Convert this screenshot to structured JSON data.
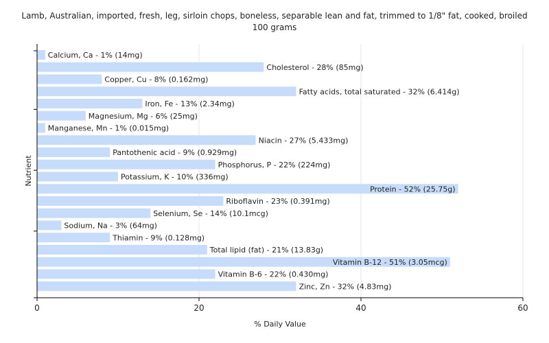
{
  "chart_data": {
    "type": "bar",
    "orientation": "horizontal",
    "title": "Lamb, Australian, imported, fresh, leg, sirloin chops, boneless, separable lean and fat, trimmed to 1/8\" fat, cooked, broiled",
    "subtitle": "100 grams",
    "xlabel": "% Daily Value",
    "ylabel": "Nutrient",
    "xlim": [
      0,
      60
    ],
    "xticks": [
      0,
      20,
      40,
      60
    ],
    "grid": true,
    "bar_color": "#c6dcfa",
    "categories": [
      "Calcium, Ca",
      "Cholesterol",
      "Copper, Cu",
      "Fatty acids, total saturated",
      "Iron, Fe",
      "Magnesium, Mg",
      "Manganese, Mn",
      "Niacin",
      "Pantothenic acid",
      "Phosphorus, P",
      "Potassium, K",
      "Protein",
      "Riboflavin",
      "Selenium, Se",
      "Sodium, Na",
      "Thiamin",
      "Total lipid (fat)",
      "Vitamin B-12",
      "Vitamin B-6",
      "Zinc, Zn"
    ],
    "values": [
      1,
      28,
      8,
      32,
      13,
      6,
      1,
      27,
      9,
      22,
      10,
      52,
      23,
      14,
      3,
      9,
      21,
      51,
      22,
      32
    ],
    "labels": [
      "Calcium, Ca - 1% (14mg)",
      "Cholesterol - 28% (85mg)",
      "Copper, Cu - 8% (0.162mg)",
      "Fatty acids, total saturated - 32% (6.414g)",
      "Iron, Fe - 13% (2.34mg)",
      "Magnesium, Mg - 6% (25mg)",
      "Manganese, Mn - 1% (0.015mg)",
      "Niacin - 27% (5.433mg)",
      "Pantothenic acid - 9% (0.929mg)",
      "Phosphorus, P - 22% (224mg)",
      "Potassium, K - 10% (336mg)",
      "Protein - 52% (25.75g)",
      "Riboflavin - 23% (0.391mg)",
      "Selenium, Se - 14% (10.1mcg)",
      "Sodium, Na - 3% (64mg)",
      "Thiamin - 9% (0.128mg)",
      "Total lipid (fat) - 21% (13.83g)",
      "Vitamin B-12 - 51% (3.05mcg)",
      "Vitamin B-6 - 22% (0.430mg)",
      "Zinc, Zn - 32% (4.83mg)"
    ]
  }
}
